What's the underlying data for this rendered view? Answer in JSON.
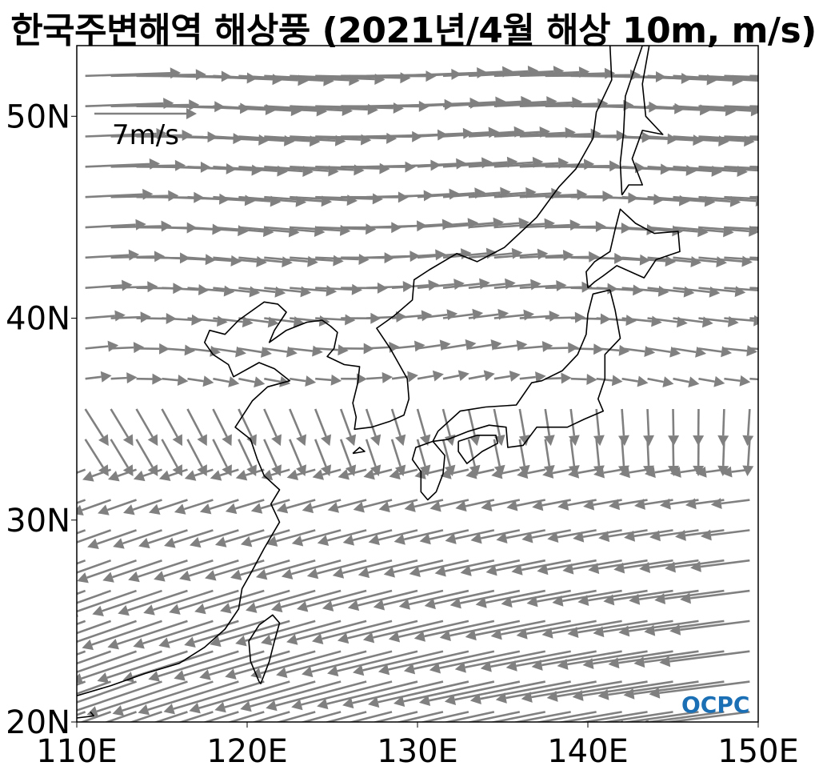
{
  "title": "한국주변해역 해상풍 (2021년/4월 해상 10m, m/s)",
  "map": {
    "lon_range": [
      110,
      150
    ],
    "lat_range": [
      20,
      53.5
    ],
    "x_ticks": [
      "110E",
      "120E",
      "130E",
      "140E",
      "150E"
    ],
    "y_ticks": [
      "20N",
      "30N",
      "40N",
      "50N"
    ],
    "coastline_color": "#000000",
    "arrow_color": "#808080",
    "reference_arrow_label": "7m/s",
    "reference_arrow_speed": 7,
    "logo_text": "OCPC",
    "logo_color": "#1a6fb5"
  }
}
